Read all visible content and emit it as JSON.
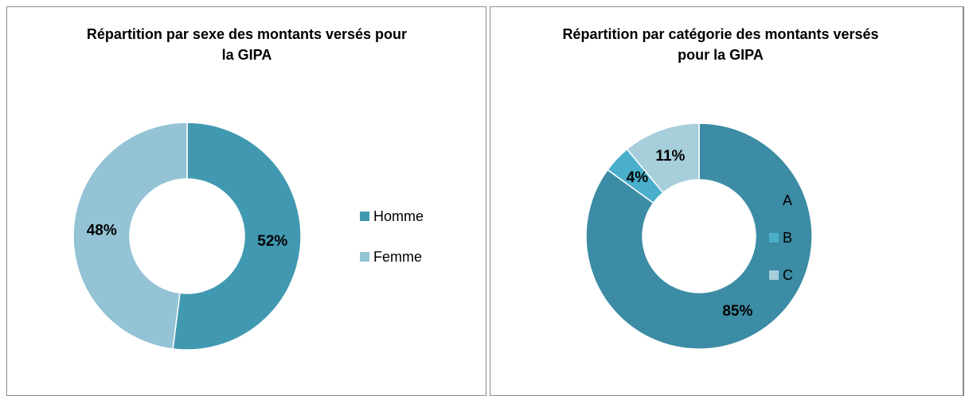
{
  "chart_data": [
    {
      "type": "donut",
      "title": "Répartition par sexe des montants versés pour la GIPA",
      "categories": [
        "Homme",
        "Femme"
      ],
      "values": [
        52,
        48
      ],
      "value_labels": [
        "52%",
        "48%"
      ],
      "colors": [
        "#4199b1",
        "#93c3d4"
      ],
      "legend": "right"
    },
    {
      "type": "donut",
      "title": "Répartition par catégorie des montants versés pour la GIPA",
      "categories": [
        "A",
        "B",
        "C"
      ],
      "values": [
        85,
        4,
        11
      ],
      "value_labels": [
        "85%",
        "4%",
        "11%"
      ],
      "colors": [
        "#3b8ca4",
        "#4aafca",
        "#a6cedb"
      ],
      "legend": "right"
    }
  ]
}
